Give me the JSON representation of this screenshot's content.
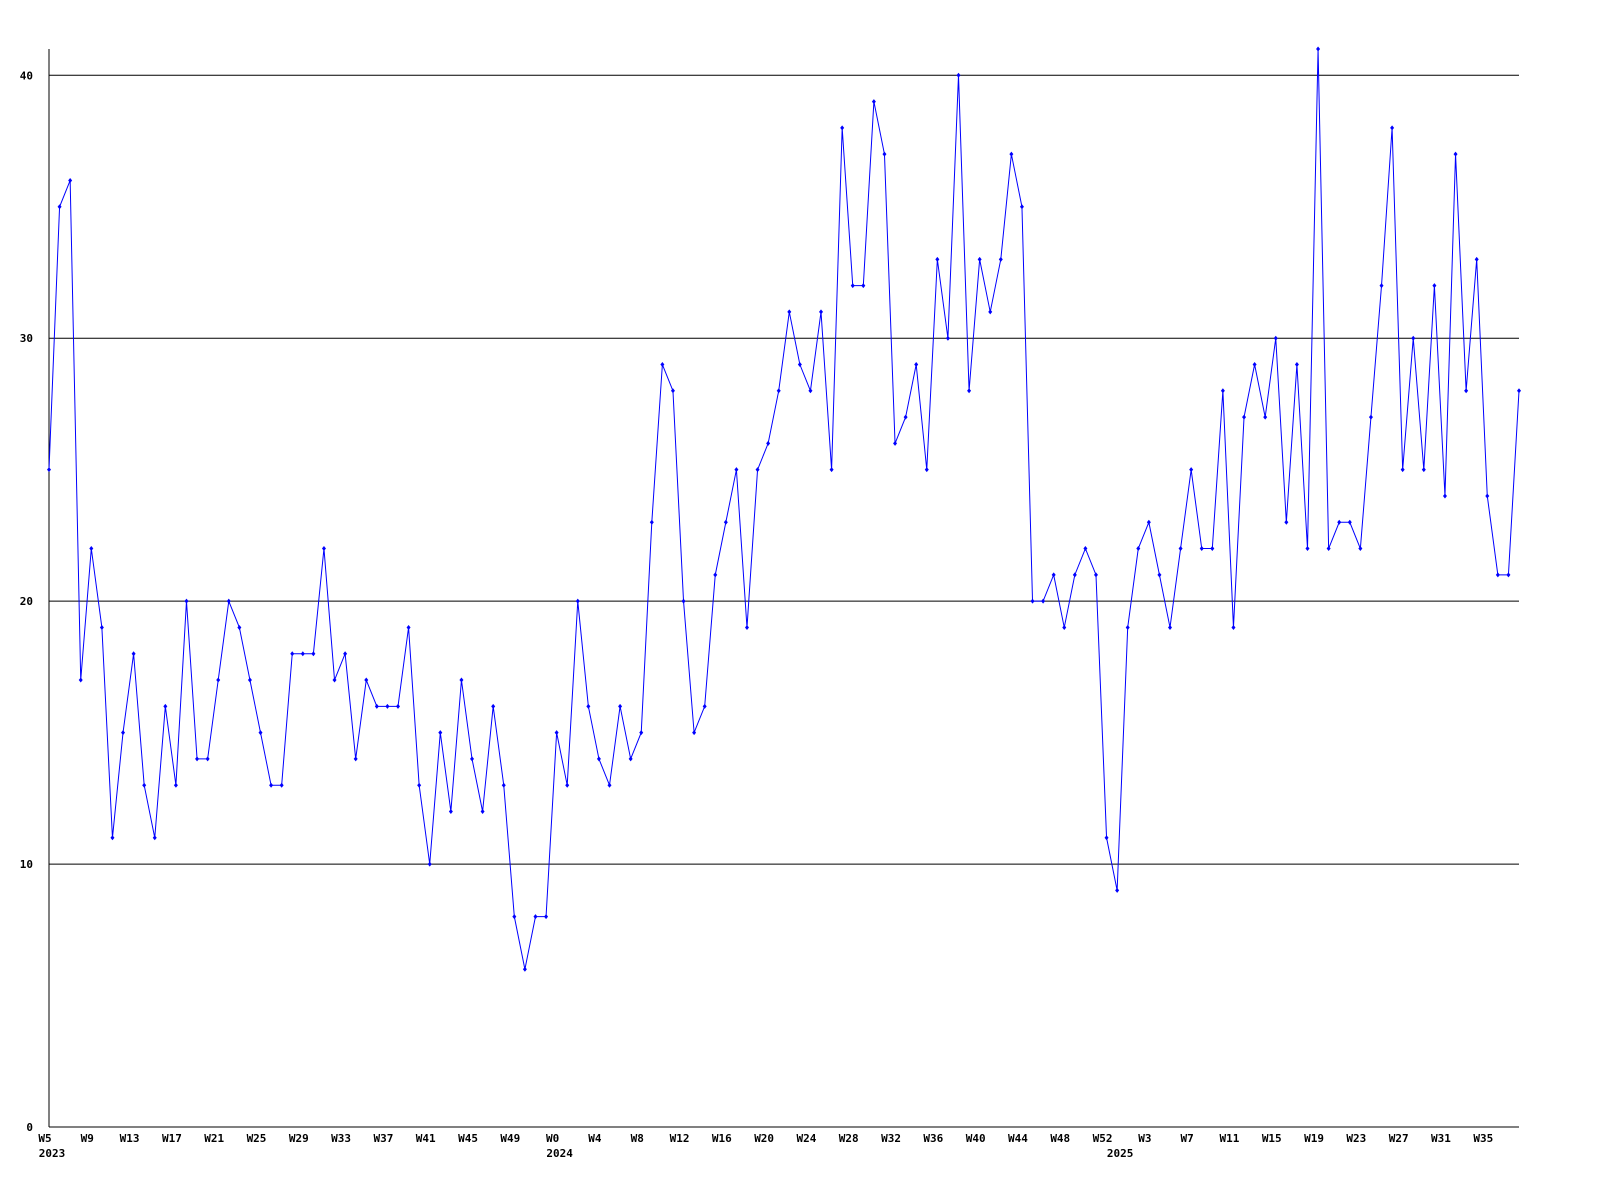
{
  "chart_data": {
    "type": "line",
    "categories": [
      "W5",
      null,
      null,
      null,
      "W9",
      null,
      null,
      null,
      "W13",
      null,
      null,
      null,
      "W17",
      null,
      null,
      null,
      "W21",
      null,
      null,
      null,
      "W25",
      null,
      null,
      null,
      "W29",
      null,
      null,
      null,
      "W33",
      null,
      null,
      null,
      "W37",
      null,
      null,
      null,
      "W41",
      null,
      null,
      null,
      "W45",
      null,
      null,
      null,
      "W49",
      null,
      null,
      null,
      "W0",
      null,
      null,
      null,
      "W4",
      null,
      null,
      null,
      "W8",
      null,
      null,
      null,
      "W12",
      null,
      null,
      null,
      "W16",
      null,
      null,
      null,
      "W20",
      null,
      null,
      null,
      "W24",
      null,
      null,
      null,
      "W28",
      null,
      null,
      null,
      "W32",
      null,
      null,
      null,
      "W36",
      null,
      null,
      null,
      "W40",
      null,
      null,
      null,
      "W44",
      null,
      null,
      null,
      "W48",
      null,
      null,
      null,
      "W52",
      null,
      null,
      null,
      "W3",
      null,
      null,
      null,
      "W7",
      null,
      null,
      null,
      "W11",
      null,
      null,
      null,
      "W15",
      null,
      null,
      null,
      "W19",
      null,
      null,
      null,
      "W23",
      null,
      null,
      null,
      "W27",
      null,
      null,
      null,
      "W31",
      null,
      null,
      null,
      "W35",
      null,
      null,
      null
    ],
    "year_labels": [
      "2023",
      null,
      null,
      null,
      null,
      null,
      null,
      null,
      null,
      null,
      null,
      null,
      null,
      null,
      null,
      null,
      null,
      null,
      null,
      null,
      null,
      null,
      null,
      null,
      null,
      null,
      null,
      null,
      null,
      null,
      null,
      null,
      null,
      null,
      null,
      null,
      null,
      null,
      null,
      null,
      null,
      null,
      null,
      null,
      null,
      null,
      null,
      null,
      "2024",
      null,
      null,
      null,
      null,
      null,
      null,
      null,
      null,
      null,
      null,
      null,
      null,
      null,
      null,
      null,
      null,
      null,
      null,
      null,
      null,
      null,
      null,
      null,
      null,
      null,
      null,
      null,
      null,
      null,
      null,
      null,
      null,
      null,
      null,
      null,
      null,
      null,
      null,
      null,
      null,
      null,
      null,
      null,
      null,
      null,
      null,
      null,
      null,
      null,
      null,
      null,
      null,
      "2025",
      null,
      null,
      null,
      null,
      null,
      null,
      null,
      null,
      null,
      null,
      null,
      null,
      null,
      null,
      null,
      null,
      null,
      null,
      null,
      null,
      null,
      null,
      null,
      null,
      null,
      null,
      null,
      null,
      null,
      null,
      null,
      null,
      null,
      null,
      null,
      null,
      null,
      null
    ],
    "series": [
      {
        "color": "#0000ff",
        "values": [
          25,
          35,
          36,
          17,
          22,
          19,
          11,
          15,
          18,
          13,
          11,
          16,
          13,
          20,
          14,
          14,
          17,
          20,
          19,
          17,
          15,
          13,
          13,
          18,
          18,
          18,
          22,
          17,
          18,
          14,
          17,
          16,
          16,
          16,
          19,
          13,
          10,
          15,
          12,
          17,
          14,
          12,
          16,
          13,
          8,
          6,
          8,
          8,
          15,
          13,
          20,
          16,
          14,
          13,
          16,
          14,
          15,
          23,
          29,
          28,
          20,
          15,
          16,
          21,
          23,
          25,
          19,
          25,
          26,
          28,
          31,
          29,
          28,
          31,
          25,
          38,
          32,
          32,
          39,
          37,
          26,
          27,
          29,
          25,
          33,
          30,
          40,
          28,
          33,
          31,
          33,
          37,
          35,
          20,
          20,
          21,
          19,
          21,
          22,
          21,
          11,
          9,
          19,
          22,
          23,
          21,
          19,
          22,
          25,
          22,
          22,
          28,
          19,
          27,
          29,
          27,
          30,
          23,
          29,
          22,
          41,
          22,
          23,
          23,
          22,
          27,
          32,
          38,
          25,
          30,
          25,
          32,
          24,
          37,
          28,
          33,
          24,
          21,
          21,
          28
        ]
      }
    ],
    "ylim": [
      0,
      41
    ],
    "yticks": [
      0,
      10,
      20,
      30,
      40
    ],
    "grid": true,
    "grid_color": "#000000",
    "axis_color": "#000000"
  }
}
